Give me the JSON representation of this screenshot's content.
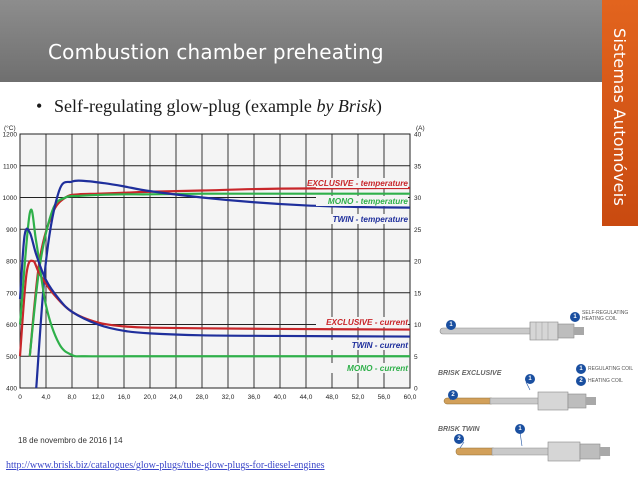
{
  "slide": {
    "title": "Combustion chamber preheating",
    "side_title": "Sistemas Automóveis",
    "bullet_text": "Self-regulating glow-plug (example ",
    "bullet_italic": "by Brisk",
    "bullet_close": ")",
    "footer_date": "18 de novembro de 2016",
    "footer_sep": " | ",
    "footer_page": "14",
    "url": "http://www.brisk.biz/catalogues/glow-plugs/tube-glow-plugs-for-diesel-engines"
  },
  "colors": {
    "title_bar": "#7a7a7a",
    "side_bar": "#d9551a",
    "exclusive": "#c8262a",
    "mono": "#2fb04a",
    "twin": "#1f2f9c"
  },
  "plugs": {
    "self_regulating_label": "SELF-REGULATING HEATING COIL",
    "regulating_coil": "REGULATING COIL",
    "heating_coil": "HEATING COIL",
    "brand_exclusive": "BRISK EXCLUSIVE",
    "brand_twin": "BRISK TWIN",
    "n1": "1",
    "n2": "2"
  },
  "chart_data": {
    "type": "line",
    "y_left_unit": "(°C)",
    "y_right_unit": "(A)",
    "y_left_ticks": [
      400,
      500,
      600,
      700,
      800,
      900,
      1000,
      1100,
      1200
    ],
    "y_right_ticks": [
      0,
      5,
      10,
      15,
      20,
      25,
      30,
      35,
      40
    ],
    "x_ticks": [
      "0",
      "4,0",
      "8,0",
      "12,0",
      "16,0",
      "20,0",
      "24,0",
      "28,0",
      "32,0",
      "36,0",
      "40,0",
      "44,0",
      "48,0",
      "52,0",
      "56,0",
      "60,0"
    ],
    "xlim": [
      0,
      60
    ],
    "ylim_left": [
      400,
      1200
    ],
    "ylim_right": [
      0,
      40
    ],
    "grid": true,
    "series": [
      {
        "name": "EXCLUSIVE - temperature",
        "axis": "left",
        "color": "#c8262a",
        "x": [
          1.5,
          3,
          5,
          7,
          9,
          12,
          16,
          20,
          28,
          40,
          60
        ],
        "y": [
          500,
          800,
          950,
          1000,
          1010,
          1012,
          1015,
          1018,
          1022,
          1028,
          1030
        ]
      },
      {
        "name": "MONO - temperature",
        "axis": "left",
        "color": "#2fb04a",
        "x": [
          1.5,
          3,
          5,
          7,
          9,
          12,
          16,
          20,
          28,
          40,
          60
        ],
        "y": [
          500,
          780,
          960,
          1000,
          1005,
          1008,
          1010,
          1010,
          1012,
          1012,
          1012
        ]
      },
      {
        "name": "TWIN - temperature",
        "axis": "left",
        "color": "#1f2f9c",
        "x": [
          2.5,
          4,
          6,
          8,
          10,
          13,
          16,
          20,
          28,
          36,
          44,
          52,
          60
        ],
        "y": [
          400,
          800,
          1020,
          1050,
          1052,
          1045,
          1035,
          1020,
          1000,
          985,
          975,
          970,
          968
        ]
      },
      {
        "name": "EXCLUSIVE - current",
        "axis": "right",
        "color": "#c8262a",
        "x": [
          0,
          1,
          2,
          3,
          5,
          8,
          12,
          16,
          20,
          28,
          40,
          60
        ],
        "y": [
          5,
          18,
          20,
          18,
          15,
          12,
          10.3,
          9.7,
          9.5,
          9.4,
          9.3,
          9.2
        ]
      },
      {
        "name": "MONO - current",
        "axis": "right",
        "color": "#2fb04a",
        "x": [
          0,
          1.5,
          2.5,
          4,
          6,
          8,
          10,
          20,
          40,
          60
        ],
        "y": [
          10,
          27.5,
          23,
          13,
          7,
          5.2,
          5,
          5,
          5,
          5
        ]
      },
      {
        "name": "TWIN - current",
        "axis": "right",
        "color": "#1f2f9c",
        "x": [
          0,
          0.7,
          1.5,
          2.5,
          4,
          6,
          8,
          12,
          16,
          20,
          28,
          40,
          60
        ],
        "y": [
          14,
          24,
          24.5,
          21,
          17,
          14,
          12,
          10,
          9,
          8.6,
          8.3,
          8.2,
          8.1
        ]
      }
    ],
    "annotations": [
      {
        "text": "EXCLUSIVE - temperature",
        "color": "#c8262a"
      },
      {
        "text": "MONO - temperature",
        "color": "#2fb04a"
      },
      {
        "text": "TWIN - temperature",
        "color": "#1f2f9c"
      },
      {
        "text": "EXCLUSIVE - current",
        "color": "#c8262a"
      },
      {
        "text": "TWIN - current",
        "color": "#1f2f9c"
      },
      {
        "text": "MONO - current",
        "color": "#2fb04a"
      }
    ]
  }
}
